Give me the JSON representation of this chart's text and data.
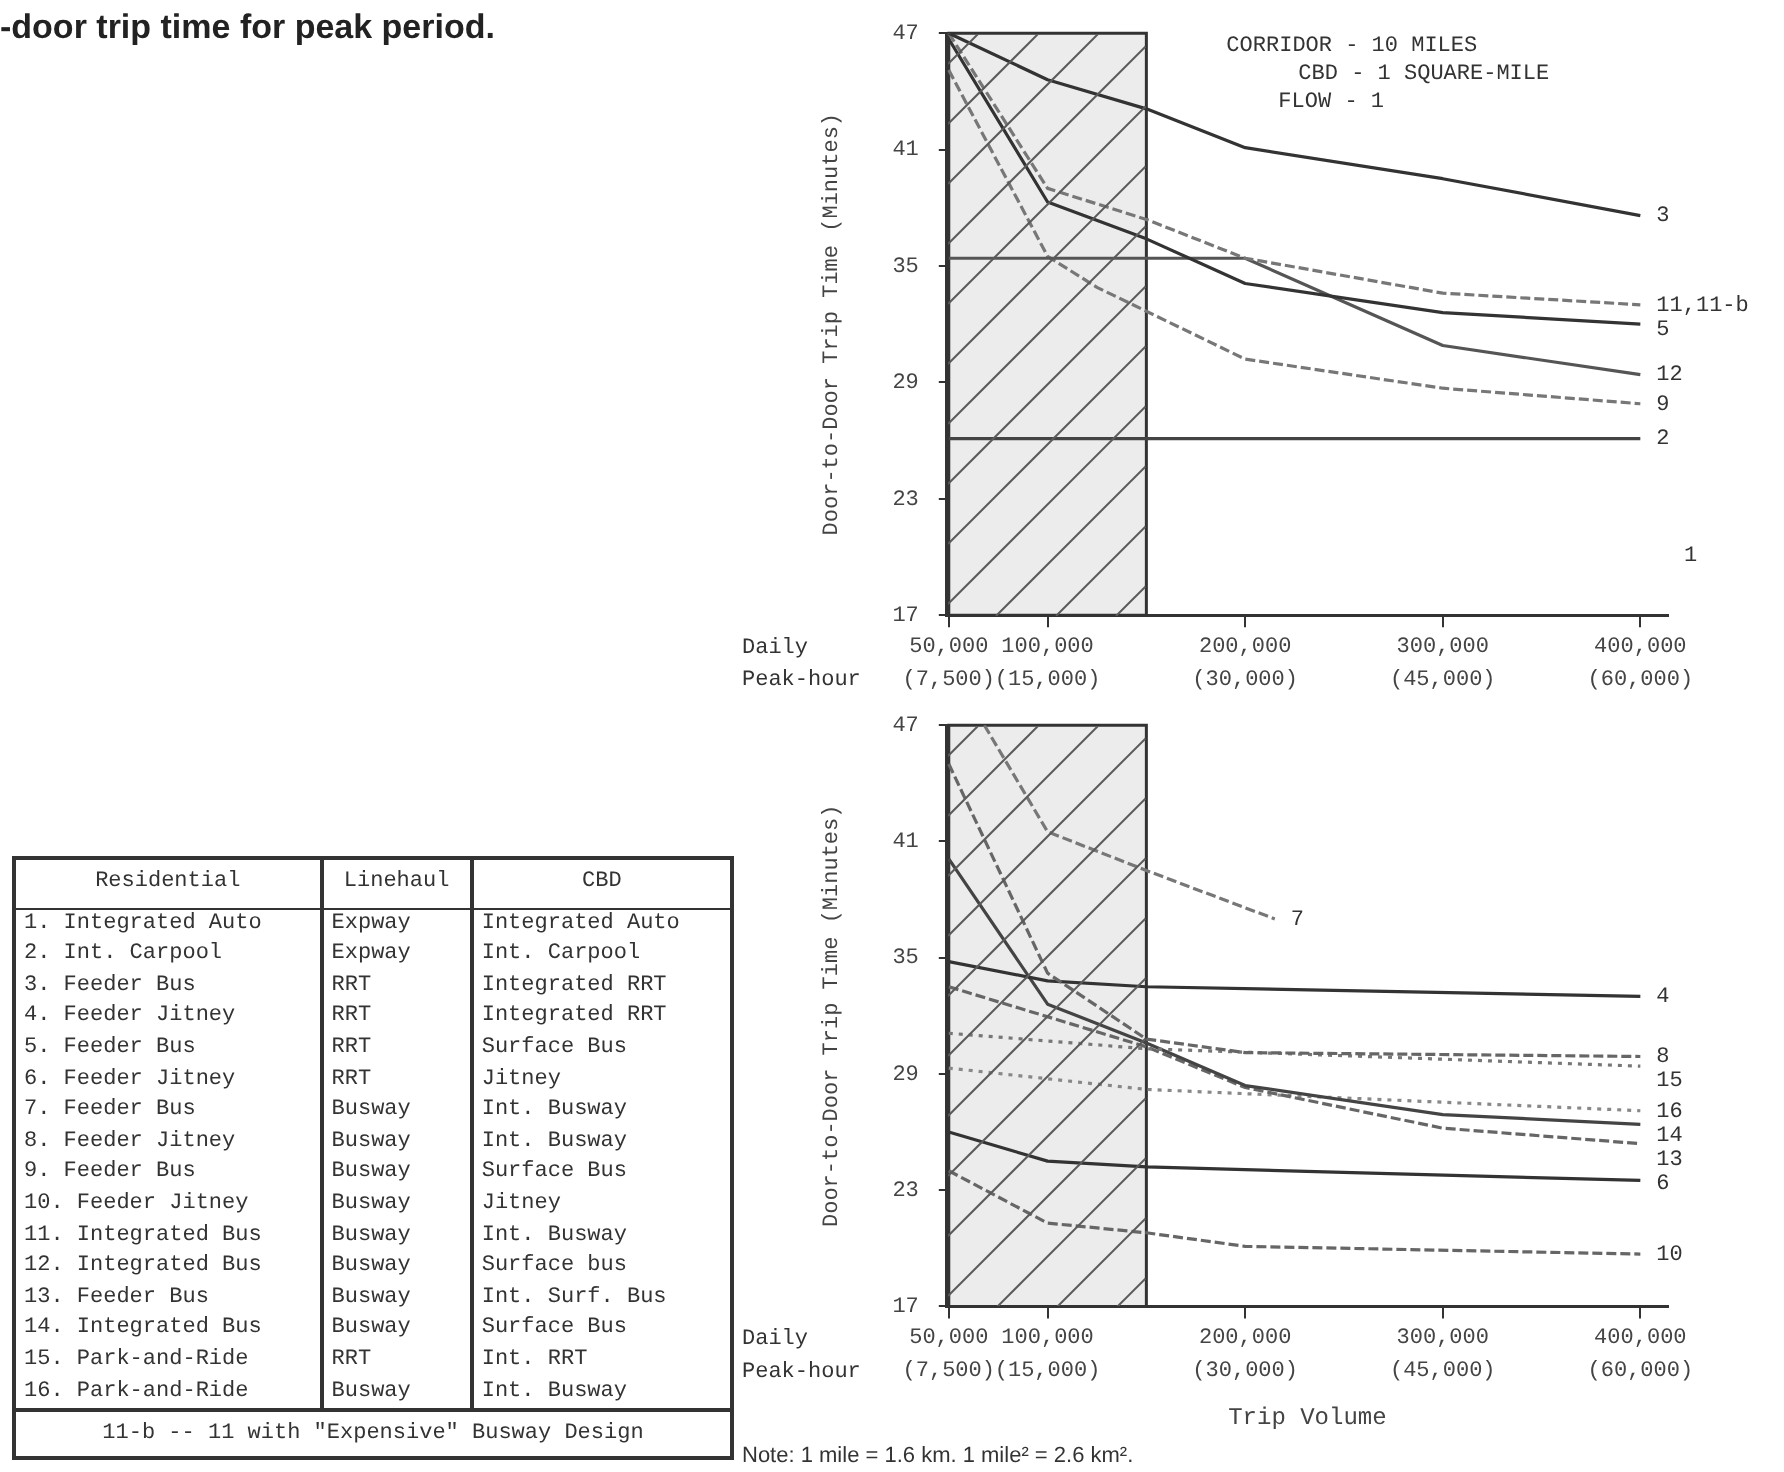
{
  "chart_data": [
    {
      "type": "line",
      "ylabel": "Door-to-Door Trip Time (Minutes)",
      "xlim": [
        49000,
        414000
      ],
      "ylim": [
        17,
        47
      ],
      "xticks": [
        {
          "value": 50000,
          "label": "50,000"
        },
        {
          "value": 100000,
          "label": "100,000"
        },
        {
          "value": 200000,
          "label": "200,000"
        },
        {
          "value": 300000,
          "label": "300,000"
        },
        {
          "value": 400000,
          "label": "400,000"
        }
      ],
      "x2lim": [
        7350,
        62100
      ],
      "x2ticks": [
        {
          "value": 7500,
          "label": "(7,500)"
        },
        {
          "value": 15000,
          "label": "(15,000)"
        },
        {
          "value": 30000,
          "label": "(30,000)"
        },
        {
          "value": 45000,
          "label": "(45,000)"
        },
        {
          "value": 60000,
          "label": "(60,000)"
        }
      ],
      "yticks": [
        17,
        23,
        29,
        35,
        41,
        47
      ],
      "bands": [
        {
          "axis": "x",
          "from": 50000,
          "to": 150000,
          "color": "#ececec"
        }
      ],
      "annotations": [
        "CORRIDOR - 10 MILES",
        "CBD - 1 SQUARE-MILE",
        "FLOW - 1",
        "Daily",
        "Peak-hour",
        "1"
      ],
      "series": [
        {
          "name": "3",
          "color": "#333333",
          "line_style": "solid",
          "x": [
            50000,
            100000,
            150000,
            200000,
            300000,
            400000
          ],
          "values": [
            47,
            44.6,
            43.1,
            41.1,
            39.5,
            37.6
          ]
        },
        {
          "name": "11,11-b",
          "color": "#777777",
          "line_style": "dashed",
          "x": [
            50000,
            100000,
            150000,
            200000,
            300000,
            400000
          ],
          "values": [
            47,
            39.0,
            37.4,
            35.4,
            33.6,
            33.0
          ]
        },
        {
          "name": "5",
          "color": "#333333",
          "line_style": "solid",
          "x": [
            50000,
            100000,
            150000,
            200000,
            300000,
            400000
          ],
          "values": [
            46.7,
            38.3,
            36.4,
            34.1,
            32.6,
            32.0
          ]
        },
        {
          "name": "12",
          "color": "#555555",
          "line_style": "solid",
          "x": [
            50000,
            200000,
            300000,
            400000
          ],
          "values": [
            35.4,
            35.4,
            30.9,
            29.4
          ]
        },
        {
          "name": "9",
          "color": "#777777",
          "line_style": "dashed",
          "x": [
            50000,
            100000,
            125000,
            200000,
            300000,
            400000
          ],
          "values": [
            45.1,
            35.5,
            33.9,
            30.2,
            28.7,
            27.9
          ]
        },
        {
          "name": "2",
          "color": "#444444",
          "line_style": "solid",
          "x": [
            50000,
            400000
          ],
          "values": [
            26.1,
            26.1
          ]
        }
      ]
    },
    {
      "type": "line",
      "ylabel": "Door-to-Door Trip Time (Minutes)",
      "xlabel": "Trip Volume",
      "xlim": [
        49000,
        414000
      ],
      "ylim": [
        17,
        47
      ],
      "xticks": [
        {
          "value": 50000,
          "label": "50,000"
        },
        {
          "value": 100000,
          "label": "100,000"
        },
        {
          "value": 200000,
          "label": "200,000"
        },
        {
          "value": 300000,
          "label": "300,000"
        },
        {
          "value": 400000,
          "label": "400,000"
        }
      ],
      "x2lim": [
        7350,
        62100
      ],
      "x2ticks": [
        {
          "value": 7500,
          "label": "(7,500)"
        },
        {
          "value": 15000,
          "label": "(15,000)"
        },
        {
          "value": 30000,
          "label": "(30,000)"
        },
        {
          "value": 45000,
          "label": "(45,000)"
        },
        {
          "value": 60000,
          "label": "(60,000)"
        }
      ],
      "yticks": [
        17,
        23,
        29,
        35,
        41,
        47
      ],
      "bands": [
        {
          "axis": "x",
          "from": 50000,
          "to": 150000,
          "color": "#ececec"
        }
      ],
      "annotations": [
        "Daily",
        "Peak-hour",
        "Note: 1 mile = 1.6 km. 1 mile² = 2.6 km²."
      ],
      "series": [
        {
          "name": "7",
          "color": "#777777",
          "line_style": "dashed",
          "x": [
            68000,
            100000,
            150000,
            215000
          ],
          "values": [
            47,
            41.5,
            39.5,
            37.0
          ]
        },
        {
          "name": "8",
          "color": "#666666",
          "line_style": "dashed",
          "x": [
            50000,
            100000,
            150000,
            200000,
            400000
          ],
          "values": [
            45.0,
            34.2,
            30.8,
            30.1,
            29.9
          ]
        },
        {
          "name": "15",
          "color": "#777777",
          "line_style": "dotted",
          "x": [
            50000,
            150000,
            400000
          ],
          "values": [
            31.1,
            30.3,
            29.4
          ]
        },
        {
          "name": "4",
          "color": "#333333",
          "line_style": "solid",
          "x": [
            50000,
            100000,
            150000,
            400000
          ],
          "values": [
            34.8,
            33.8,
            33.5,
            33.0
          ]
        },
        {
          "name": "14",
          "color": "#444444",
          "line_style": "solid",
          "x": [
            50000,
            100000,
            150000,
            200000,
            300000,
            400000
          ],
          "values": [
            40.1,
            32.6,
            30.6,
            28.4,
            26.9,
            26.4
          ]
        },
        {
          "name": "13",
          "color": "#666666",
          "line_style": "dashed",
          "x": [
            50000,
            150000,
            200000,
            300000,
            400000
          ],
          "values": [
            33.5,
            30.4,
            28.3,
            26.2,
            25.4
          ]
        },
        {
          "name": "16",
          "color": "#888888",
          "line_style": "dotted",
          "x": [
            50000,
            150000,
            400000
          ],
          "values": [
            29.3,
            28.2,
            27.1
          ]
        },
        {
          "name": "6",
          "color": "#333333",
          "line_style": "solid",
          "x": [
            50000,
            100000,
            150000,
            400000
          ],
          "values": [
            26.0,
            24.5,
            24.2,
            23.5
          ]
        },
        {
          "name": "10",
          "color": "#666666",
          "line_style": "dashed",
          "x": [
            50000,
            100000,
            150000,
            200000,
            400000
          ],
          "values": [
            24.0,
            21.3,
            20.8,
            20.1,
            19.7
          ]
        }
      ]
    },
    {
      "type": "other",
      "title": "-door trip time for peak period.",
      "annotations": [
        "Residential",
        "Linehaul",
        "CBD",
        "1. Integrated Auto",
        "Expway",
        "Integrated Auto",
        "2. Int. Carpool",
        "Expway",
        "Int. Carpool",
        "3. Feeder Bus",
        "RRT",
        "Integrated RRT",
        "4. Feeder Jitney",
        "RRT",
        "Integrated RRT",
        "5. Feeder Bus",
        "RRT",
        "Surface Bus",
        "6. Feeder Jitney",
        "RRT",
        "Jitney",
        "7. Feeder Bus",
        "Busway",
        "Int. Busway",
        "8. Feeder Jitney",
        "Busway",
        "Int. Busway",
        "9. Feeder Bus",
        "Busway",
        "Surface Bus",
        "10. Feeder Jitney",
        "Busway",
        "Jitney",
        "11. Integrated Bus",
        "Busway",
        "Int. Busway",
        "12. Integrated Bus",
        "Busway",
        "Surface bus",
        "13. Feeder Bus",
        "Busway",
        "Int. Surf. Bus",
        "14. Integrated Bus",
        "Busway",
        "Surface Bus",
        "15. Park-and-Ride",
        "RRT",
        "Int. RRT",
        "16. Park-and-Ride",
        "Busway",
        "Int. Busway",
        "11-b -- 11 with \"Expensive\" Busway Design"
      ]
    }
  ]
}
